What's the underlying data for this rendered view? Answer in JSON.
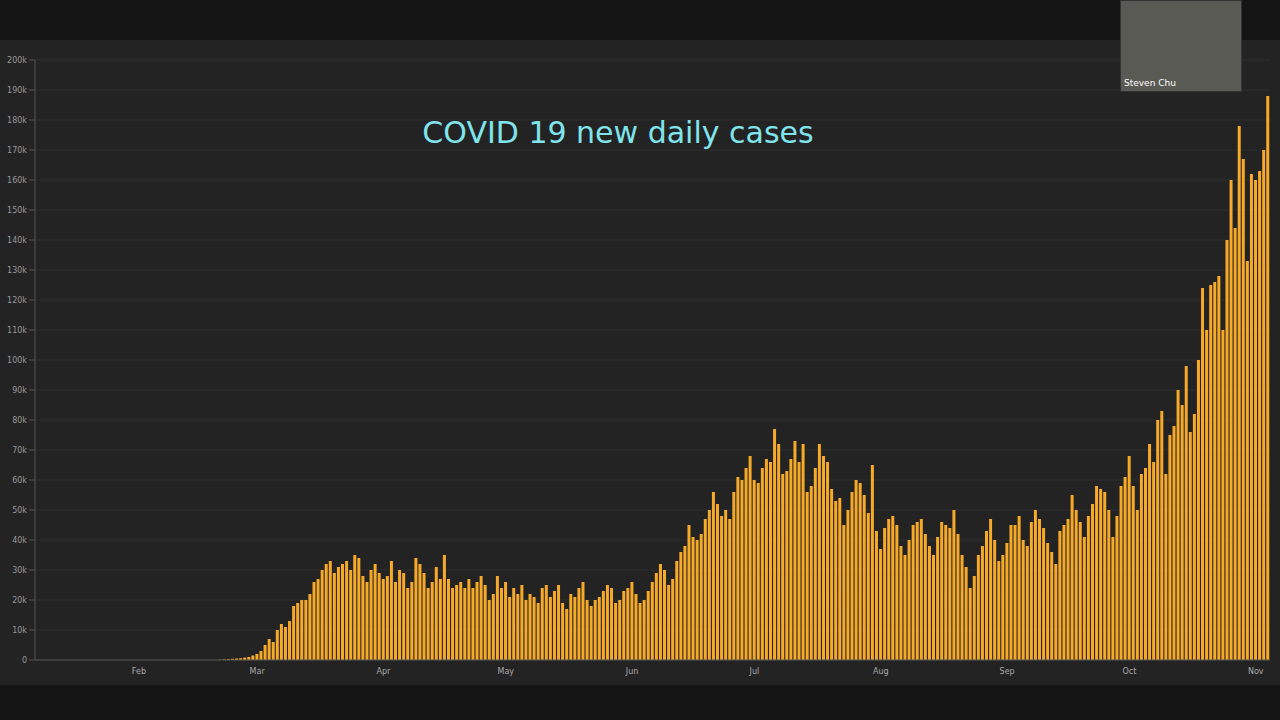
{
  "chart_data": {
    "type": "bar",
    "title": "COVID 19 new daily cases",
    "annotations": [
      "Steven Chu"
    ],
    "categories": [
      null,
      null,
      null,
      null,
      null,
      null,
      null,
      null,
      null,
      null,
      null,
      null,
      null,
      null,
      null,
      null,
      null,
      null,
      null,
      null,
      null,
      null,
      null,
      null,
      null,
      "Feb",
      null,
      null,
      null,
      null,
      null,
      null,
      null,
      null,
      null,
      null,
      null,
      null,
      null,
      null,
      null,
      null,
      null,
      null,
      null,
      null,
      null,
      null,
      null,
      null,
      null,
      null,
      null,
      null,
      "Mar",
      null,
      null,
      null,
      null,
      null,
      null,
      null,
      null,
      null,
      null,
      null,
      null,
      null,
      null,
      null,
      null,
      null,
      null,
      null,
      null,
      null,
      null,
      null,
      null,
      null,
      null,
      null,
      null,
      null,
      null,
      "Apr",
      null,
      null,
      null,
      null,
      null,
      null,
      null,
      null,
      null,
      null,
      null,
      null,
      null,
      null,
      null,
      null,
      null,
      null,
      null,
      null,
      null,
      null,
      null,
      null,
      null,
      null,
      null,
      null,
      null,
      "May",
      null,
      null,
      null,
      null,
      null,
      null,
      null,
      null,
      null,
      null,
      null,
      null,
      null,
      null,
      null,
      null,
      null,
      null,
      null,
      null,
      null,
      null,
      null,
      null,
      null,
      null,
      null,
      null,
      null,
      null,
      "Jun",
      null,
      null,
      null,
      null,
      null,
      null,
      null,
      null,
      null,
      null,
      null,
      null,
      null,
      null,
      null,
      null,
      null,
      null,
      null,
      null,
      null,
      null,
      null,
      null,
      null,
      null,
      null,
      null,
      null,
      "Jul",
      null,
      null,
      null,
      null,
      null,
      null,
      null,
      null,
      null,
      null,
      null,
      null,
      null,
      null,
      null,
      null,
      null,
      null,
      null,
      null,
      null,
      null,
      null,
      null,
      null,
      null,
      null,
      null,
      null,
      null,
      "Aug",
      null,
      null,
      null,
      null,
      null,
      null,
      null,
      null,
      null,
      null,
      null,
      null,
      null,
      null,
      null,
      null,
      null,
      null,
      null,
      null,
      null,
      null,
      null,
      null,
      null,
      null,
      null,
      null,
      null,
      null,
      "Sep",
      null,
      null,
      null,
      null,
      null,
      null,
      null,
      null,
      null,
      null,
      null,
      null,
      null,
      null,
      null,
      null,
      null,
      null,
      null,
      null,
      null,
      null,
      null,
      null,
      null,
      null,
      null,
      null,
      null,
      "Oct",
      null,
      null,
      null,
      null,
      null,
      null,
      null,
      null,
      null,
      null,
      null,
      null,
      null,
      null,
      null,
      null,
      null,
      null,
      null,
      null,
      null,
      null,
      null,
      null,
      null,
      null,
      null,
      null,
      null,
      null,
      "Nov",
      null,
      null,
      null
    ],
    "values": [
      0,
      0,
      0,
      0,
      0,
      0,
      0,
      0,
      0,
      0,
      0,
      0,
      0,
      0,
      0,
      0,
      0,
      0,
      0,
      0,
      0,
      0,
      0,
      0,
      0,
      0,
      0,
      0,
      0,
      0,
      0,
      0,
      0,
      0,
      0,
      0,
      0,
      0,
      0,
      0,
      0,
      0,
      0,
      0,
      0,
      100,
      200,
      300,
      400,
      500,
      600,
      800,
      1000,
      1500,
      2000,
      3000,
      5000,
      7000,
      6000,
      10000,
      12000,
      11000,
      13000,
      18000,
      19000,
      20000,
      20000,
      22000,
      26000,
      27000,
      30000,
      32000,
      33000,
      29000,
      31000,
      32000,
      33000,
      30000,
      35000,
      34000,
      28000,
      26000,
      30000,
      32000,
      29000,
      27000,
      28000,
      33000,
      26000,
      30000,
      29000,
      24000,
      26000,
      34000,
      32000,
      29000,
      24000,
      26000,
      31000,
      27000,
      35000,
      27000,
      24000,
      25000,
      26000,
      24000,
      27000,
      24000,
      26000,
      28000,
      25000,
      20000,
      22000,
      28000,
      24000,
      26000,
      21000,
      24000,
      22000,
      25000,
      20000,
      22000,
      21000,
      19000,
      24000,
      25000,
      21000,
      23000,
      25000,
      19000,
      17000,
      22000,
      21000,
      24000,
      26000,
      20000,
      18000,
      20000,
      21000,
      23000,
      25000,
      24000,
      19000,
      20000,
      23000,
      24000,
      26000,
      22000,
      19000,
      20000,
      23000,
      26000,
      29000,
      32000,
      30000,
      25000,
      27000,
      33000,
      36000,
      38000,
      45000,
      41000,
      40000,
      42000,
      47000,
      50000,
      56000,
      52000,
      48000,
      50000,
      47000,
      56000,
      61000,
      60000,
      64000,
      68000,
      60000,
      59000,
      64000,
      67000,
      66000,
      77000,
      72000,
      62000,
      63000,
      67000,
      73000,
      66000,
      72000,
      56000,
      58000,
      64000,
      72000,
      68000,
      66000,
      57000,
      53000,
      54000,
      45000,
      50000,
      56000,
      60000,
      59000,
      55000,
      49000,
      65000,
      43000,
      37000,
      44000,
      47000,
      48000,
      45000,
      38000,
      35000,
      40000,
      45000,
      46000,
      47000,
      42000,
      38000,
      35000,
      41000,
      46000,
      45000,
      44000,
      50000,
      42000,
      35000,
      31000,
      24000,
      28000,
      35000,
      38000,
      43000,
      47000,
      40000,
      33000,
      35000,
      39000,
      45000,
      45000,
      48000,
      40000,
      38000,
      46000,
      50000,
      47000,
      44000,
      39000,
      36000,
      32000,
      43000,
      45000,
      47000,
      55000,
      50000,
      46000,
      41000,
      48000,
      52000,
      58000,
      57000,
      56000,
      50000,
      41000,
      48000,
      58000,
      61000,
      68000,
      58000,
      50000,
      62000,
      64000,
      72000,
      66000,
      80000,
      83000,
      62000,
      75000,
      78000,
      90000,
      85000,
      98000,
      76000,
      82000,
      100000,
      124000,
      110000,
      125000,
      126000,
      128000,
      110000,
      140000,
      160000,
      144000,
      178000,
      167000,
      133000,
      162000,
      160000,
      163000,
      170000,
      188000
    ],
    "color": "#f7a928",
    "ylim": [
      0,
      200000
    ],
    "yticks": [
      0,
      {
        "value": 10000,
        "label": "10k"
      },
      {
        "value": 20000,
        "label": "20k"
      },
      {
        "value": 30000,
        "label": "30k"
      },
      {
        "value": 40000,
        "label": "40k"
      },
      {
        "value": 50000,
        "label": "50k"
      },
      {
        "value": 60000,
        "label": "60k"
      },
      {
        "value": 70000,
        "label": "70k"
      },
      {
        "value": 80000,
        "label": "80k"
      },
      {
        "value": 90000,
        "label": "90k"
      },
      {
        "value": 100000,
        "label": "100k"
      },
      {
        "value": 110000,
        "label": "110k"
      },
      {
        "value": 120000,
        "label": "120k"
      },
      {
        "value": 130000,
        "label": "130k"
      },
      {
        "value": 140000,
        "label": "140k"
      },
      {
        "value": 150000,
        "label": "150k"
      },
      {
        "value": 160000,
        "label": "160k"
      },
      {
        "value": 170000,
        "label": "170k"
      },
      {
        "value": 180000,
        "label": "180k"
      },
      {
        "value": 190000,
        "label": "190k"
      },
      {
        "value": 200000,
        "label": "200k"
      }
    ],
    "grid": true
  }
}
